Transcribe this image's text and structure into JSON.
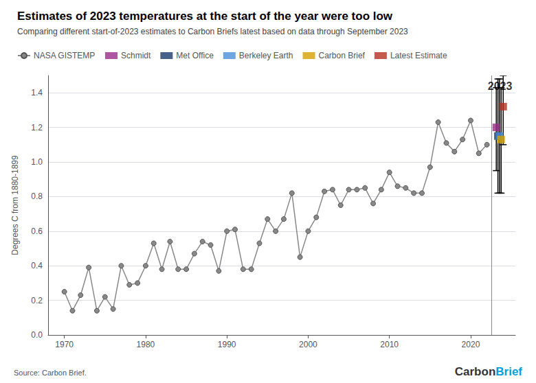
{
  "chart_data": {
    "type": "line",
    "title": "Estimates of 2023 temperatures at the start of the year were too low",
    "subtitle": "Comparing different start-of-2023 estimates to Carbon Briefs latest based on data through September 2023",
    "source": "Source: Carbon Brief.",
    "ylabel": "Degrees C from 1880-1899",
    "logo": [
      {
        "text": "Carbon",
        "color": "#333333"
      },
      {
        "text": "Brief",
        "color": "#009FDA"
      }
    ],
    "annotations": [
      {
        "text": "2023",
        "x": 2023.6,
        "y": 1.48
      }
    ],
    "reference_lines": [
      {
        "axis": "x",
        "value": 2022.6,
        "color": "#888888"
      }
    ],
    "series": [
      {
        "name": "NASA GISTEMP",
        "type": "line",
        "marker": "circle",
        "color": "#888888",
        "x": [
          1970,
          1971,
          1972,
          1973,
          1974,
          1975,
          1976,
          1977,
          1978,
          1979,
          1980,
          1981,
          1982,
          1983,
          1984,
          1985,
          1986,
          1987,
          1988,
          1989,
          1990,
          1991,
          1992,
          1993,
          1994,
          1995,
          1996,
          1997,
          1998,
          1999,
          2000,
          2001,
          2002,
          2003,
          2004,
          2005,
          2006,
          2007,
          2008,
          2009,
          2010,
          2011,
          2012,
          2013,
          2014,
          2015,
          2016,
          2017,
          2018,
          2019,
          2020,
          2021,
          2022
        ],
        "values": [
          0.25,
          0.14,
          0.23,
          0.39,
          0.14,
          0.22,
          0.15,
          0.4,
          0.29,
          0.3,
          0.4,
          0.53,
          0.38,
          0.54,
          0.38,
          0.38,
          0.47,
          0.54,
          0.52,
          0.37,
          0.6,
          0.61,
          0.38,
          0.38,
          0.53,
          0.67,
          0.6,
          0.67,
          0.82,
          0.45,
          0.6,
          0.68,
          0.83,
          0.84,
          0.75,
          0.84,
          0.84,
          0.85,
          0.76,
          0.84,
          0.94,
          0.86,
          0.85,
          0.82,
          0.82,
          0.97,
          1.23,
          1.11,
          1.06,
          1.13,
          1.24,
          1.05,
          1.1
        ]
      },
      {
        "name": "Schmidt",
        "type": "scatter",
        "marker": "square",
        "color": "#9b2c8c",
        "x": [
          2023.15
        ],
        "values": [
          1.2
        ],
        "y_low": [
          0.95
        ],
        "y_high": [
          1.43
        ]
      },
      {
        "name": "Met Office",
        "type": "scatter",
        "marker": "square",
        "color": "#1a3a6b",
        "x": [
          2023.35
        ],
        "values": [
          1.15
        ],
        "y_low": [
          0.82
        ],
        "y_high": [
          1.48
        ]
      },
      {
        "name": "Berkeley Earth",
        "type": "scatter",
        "marker": "square",
        "color": "#4a90d9",
        "x": [
          2023.55
        ],
        "values": [
          1.15
        ],
        "y_low": [
          0.82
        ],
        "y_high": [
          1.48
        ]
      },
      {
        "name": "Carbon Brief",
        "type": "scatter",
        "marker": "square",
        "color": "#d4a000",
        "x": [
          2023.75
        ],
        "values": [
          1.13
        ],
        "y_low": [
          0.82
        ],
        "y_high": [
          1.43
        ]
      },
      {
        "name": "Latest Estimate",
        "type": "scatter",
        "marker": "square",
        "color": "#b83020",
        "x": [
          2024.0
        ],
        "values": [
          1.32
        ],
        "y_low": [
          1.1
        ],
        "y_high": [
          1.5
        ]
      }
    ],
    "xlim": [
      1968,
      2025.5
    ],
    "xticks": [
      1970,
      1980,
      1990,
      2000,
      2010,
      2020
    ],
    "ylim": [
      0.0,
      1.5
    ],
    "yticks": [
      {
        "value": 0.0,
        "label": "0.0"
      },
      0.2,
      0.4,
      0.6,
      0.8,
      {
        "value": 1.0,
        "label": "1.0"
      },
      1.2,
      1.4
    ],
    "grid": "y",
    "legend": "top-left"
  }
}
